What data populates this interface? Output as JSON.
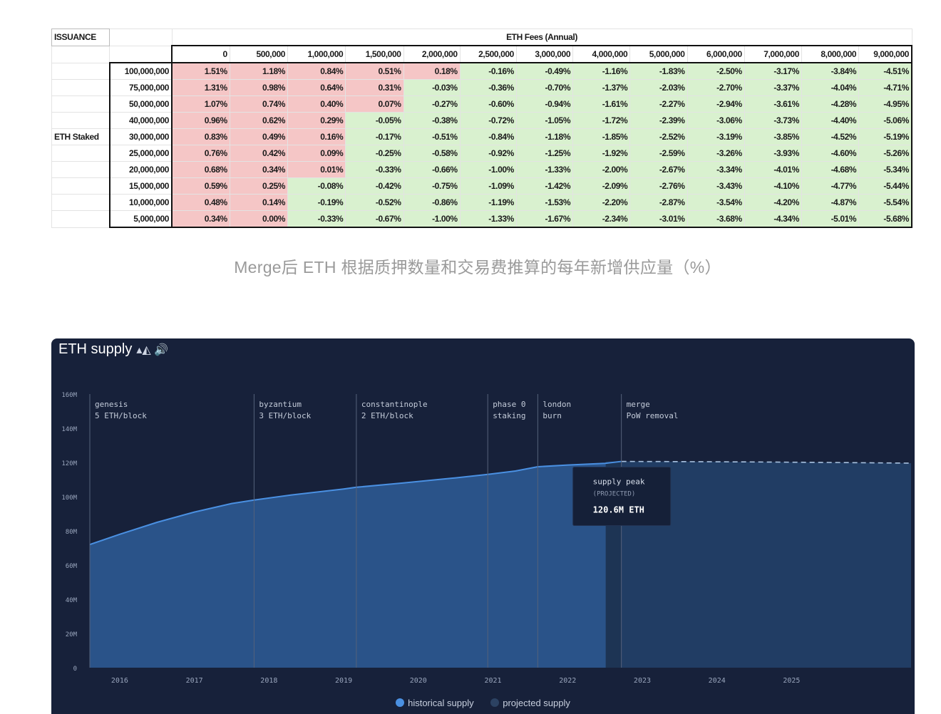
{
  "table": {
    "issuance_label": "ISSUANCE",
    "fees_title": "ETH Fees (Annual)",
    "row_group_label": "ETH Staked",
    "fee_columns": [
      "0",
      "500,000",
      "1,000,000",
      "1,500,000",
      "2,000,000",
      "2,500,000",
      "3,000,000",
      "4,000,000",
      "5,000,000",
      "6,000,000",
      "7,000,000",
      "8,000,000",
      "9,000,000"
    ],
    "rows": [
      {
        "staked": "100,000,000",
        "values": [
          "1.51%",
          "1.18%",
          "0.84%",
          "0.51%",
          "0.18%",
          "-0.16%",
          "-0.49%",
          "-1.16%",
          "-1.83%",
          "-2.50%",
          "-3.17%",
          "-3.84%",
          "-4.51%"
        ]
      },
      {
        "staked": "75,000,000",
        "values": [
          "1.31%",
          "0.98%",
          "0.64%",
          "0.31%",
          "-0.03%",
          "-0.36%",
          "-0.70%",
          "-1.37%",
          "-2.03%",
          "-2.70%",
          "-3.37%",
          "-4.04%",
          "-4.71%"
        ]
      },
      {
        "staked": "50,000,000",
        "values": [
          "1.07%",
          "0.74%",
          "0.40%",
          "0.07%",
          "-0.27%",
          "-0.60%",
          "-0.94%",
          "-1.61%",
          "-2.27%",
          "-2.94%",
          "-3.61%",
          "-4.28%",
          "-4.95%"
        ]
      },
      {
        "staked": "40,000,000",
        "values": [
          "0.96%",
          "0.62%",
          "0.29%",
          "-0.05%",
          "-0.38%",
          "-0.72%",
          "-1.05%",
          "-1.72%",
          "-2.39%",
          "-3.06%",
          "-3.73%",
          "-4.40%",
          "-5.06%"
        ]
      },
      {
        "staked": "30,000,000",
        "values": [
          "0.83%",
          "0.49%",
          "0.16%",
          "-0.17%",
          "-0.51%",
          "-0.84%",
          "-1.18%",
          "-1.85%",
          "-2.52%",
          "-3.19%",
          "-3.85%",
          "-4.52%",
          "-5.19%"
        ]
      },
      {
        "staked": "25,000,000",
        "values": [
          "0.76%",
          "0.42%",
          "0.09%",
          "-0.25%",
          "-0.58%",
          "-0.92%",
          "-1.25%",
          "-1.92%",
          "-2.59%",
          "-3.26%",
          "-3.93%",
          "-4.60%",
          "-5.26%"
        ]
      },
      {
        "staked": "20,000,000",
        "values": [
          "0.68%",
          "0.34%",
          "0.01%",
          "-0.33%",
          "-0.66%",
          "-1.00%",
          "-1.33%",
          "-2.00%",
          "-2.67%",
          "-3.34%",
          "-4.01%",
          "-4.68%",
          "-5.34%"
        ]
      },
      {
        "staked": "15,000,000",
        "values": [
          "0.59%",
          "0.25%",
          "-0.08%",
          "-0.42%",
          "-0.75%",
          "-1.09%",
          "-1.42%",
          "-2.09%",
          "-2.76%",
          "-3.43%",
          "-4.10%",
          "-4.77%",
          "-5.44%"
        ]
      },
      {
        "staked": "10,000,000",
        "values": [
          "0.48%",
          "0.14%",
          "-0.19%",
          "-0.52%",
          "-0.86%",
          "-1.19%",
          "-1.53%",
          "-2.20%",
          "-2.87%",
          "-3.54%",
          "-4.20%",
          "-4.87%",
          "-5.54%"
        ]
      },
      {
        "staked": "5,000,000",
        "values": [
          "0.34%",
          "0.00%",
          "-0.33%",
          "-0.67%",
          "-1.00%",
          "-1.33%",
          "-1.67%",
          "-2.34%",
          "-3.01%",
          "-3.68%",
          "-4.34%",
          "-5.01%",
          "-5.68%"
        ]
      }
    ]
  },
  "caption": "Merge后 ETH 根据质押数量和交易费推算的每年新增供应量（%）",
  "chart_panel": {
    "title": "ETH supply",
    "title_icons": "▴◭ 🔊",
    "title_icon_names": [
      "chart-toggle-icon",
      "speaker-icon"
    ],
    "colors": {
      "background": "#17213a",
      "historical_fill": "#2a5389",
      "historical_line": "#4a90e2",
      "projected_fill": "#213d64",
      "projected_line": "#a9c2e0",
      "table_positive": "#f5c6c6",
      "table_negative": "#d9f1cf"
    },
    "tooltip": {
      "title": "supply peak",
      "subtitle": "(PROJECTED)",
      "value": "120.6M ETH"
    },
    "legend": [
      {
        "label": "historical supply"
      },
      {
        "label": "projected supply"
      }
    ]
  },
  "chart_data": {
    "type": "area",
    "title": "",
    "xlabel": "",
    "ylabel": "",
    "xlim": [
      2015.6,
      2026.6
    ],
    "ylim": [
      0,
      160
    ],
    "x_ticks": [
      {
        "x": 2016.0,
        "label": "2016"
      },
      {
        "x": 2017.0,
        "label": "2017"
      },
      {
        "x": 2018.0,
        "label": "2018"
      },
      {
        "x": 2019.0,
        "label": "2019"
      },
      {
        "x": 2020.0,
        "label": "2020"
      },
      {
        "x": 2021.0,
        "label": "2021"
      },
      {
        "x": 2022.0,
        "label": "2022"
      },
      {
        "x": 2023.0,
        "label": "2023"
      },
      {
        "x": 2024.0,
        "label": "2024"
      },
      {
        "x": 2025.0,
        "label": "2025"
      }
    ],
    "y_ticks": [
      {
        "y": 0,
        "label": "0"
      },
      {
        "y": 20,
        "label": "20M"
      },
      {
        "y": 40,
        "label": "40M"
      },
      {
        "y": 60,
        "label": "60M"
      },
      {
        "y": 80,
        "label": "80M"
      },
      {
        "y": 100,
        "label": "100M"
      },
      {
        "y": 120,
        "label": "120M"
      },
      {
        "y": 140,
        "label": "140M"
      },
      {
        "y": 160,
        "label": "160M"
      }
    ],
    "events": [
      {
        "x": 2015.6,
        "label": "genesis",
        "sublabel": "5 ETH/block"
      },
      {
        "x": 2017.8,
        "label": "byzantium",
        "sublabel": "3 ETH/block"
      },
      {
        "x": 2019.17,
        "label": "constantinople",
        "sublabel": "2 ETH/block"
      },
      {
        "x": 2020.93,
        "label": "phase 0",
        "sublabel": "staking"
      },
      {
        "x": 2021.6,
        "label": "london",
        "sublabel": "burn"
      },
      {
        "x": 2022.72,
        "label": "merge",
        "sublabel": "PoW removal"
      }
    ],
    "series": [
      {
        "name": "historical supply",
        "points": [
          [
            2015.6,
            72
          ],
          [
            2016.0,
            78
          ],
          [
            2016.5,
            85
          ],
          [
            2017.0,
            91
          ],
          [
            2017.5,
            96
          ],
          [
            2017.8,
            98
          ],
          [
            2018.3,
            101
          ],
          [
            2019.0,
            104.5
          ],
          [
            2019.17,
            105.5
          ],
          [
            2019.8,
            108
          ],
          [
            2020.5,
            111
          ],
          [
            2020.93,
            113
          ],
          [
            2021.3,
            115
          ],
          [
            2021.6,
            117.5
          ],
          [
            2022.0,
            118.5
          ],
          [
            2022.5,
            119.5
          ],
          [
            2022.72,
            120.6
          ]
        ]
      },
      {
        "name": "projected supply",
        "points": [
          [
            2022.72,
            120.6
          ],
          [
            2023.5,
            120.5
          ],
          [
            2024.5,
            120.3
          ],
          [
            2025.5,
            120.0
          ],
          [
            2026.6,
            119.6
          ]
        ]
      }
    ],
    "tooltip_x": 2022.72
  }
}
